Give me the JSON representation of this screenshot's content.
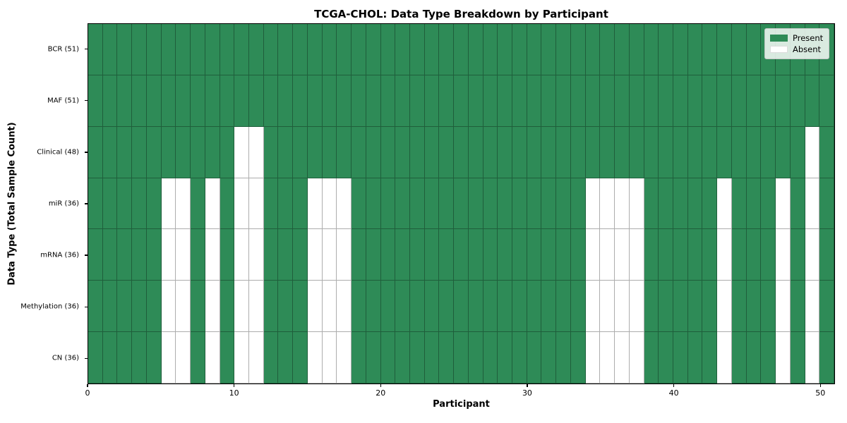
{
  "title": "TCGA-CHOL: Data Type Breakdown by Participant",
  "axes": {
    "xlabel": "Participant",
    "ylabel": "Data Type (Total Sample Count)"
  },
  "legend": {
    "present_label": "Present",
    "absent_label": "Absent"
  },
  "colors": {
    "present": "#2e8b57",
    "absent": "#ffffff",
    "grid_line": "rgba(0,0,0,0.32)",
    "plot_border": "#000000",
    "legend_bg": "rgba(255,255,255,0.82)",
    "legend_border": "#c7c7c7"
  },
  "chart_data": {
    "type": "heatmap",
    "title": "TCGA-CHOL: Data Type Breakdown by Participant",
    "xlabel": "Participant",
    "ylabel": "Data Type (Total Sample Count)",
    "x_range": [
      0,
      51
    ],
    "n_participants": 51,
    "x_ticks": [
      0,
      10,
      20,
      30,
      40,
      50
    ],
    "grid": true,
    "legend_entries": [
      "Present",
      "Absent"
    ],
    "legend_position": "upper right",
    "value_encoding": {
      "present": 1,
      "absent": 0
    },
    "rows": [
      {
        "label": "BCR (51)",
        "total_present": 51,
        "absent_participants": []
      },
      {
        "label": "MAF (51)",
        "total_present": 51,
        "absent_participants": []
      },
      {
        "label": "Clinical (48)",
        "total_present": 48,
        "absent_participants": [
          10,
          11,
          49
        ]
      },
      {
        "label": "miR (36)",
        "total_present": 36,
        "absent_participants": [
          5,
          6,
          8,
          10,
          11,
          15,
          16,
          17,
          34,
          35,
          36,
          37,
          43,
          47,
          49
        ]
      },
      {
        "label": "mRNA (36)",
        "total_present": 36,
        "absent_participants": [
          5,
          6,
          8,
          10,
          11,
          15,
          16,
          17,
          34,
          35,
          36,
          37,
          43,
          47,
          49
        ]
      },
      {
        "label": "Methylation (36)",
        "total_present": 36,
        "absent_participants": [
          5,
          6,
          8,
          10,
          11,
          15,
          16,
          17,
          34,
          35,
          36,
          37,
          43,
          47,
          49
        ]
      },
      {
        "label": "CN (36)",
        "total_present": 36,
        "absent_participants": [
          5,
          6,
          8,
          10,
          11,
          15,
          16,
          17,
          34,
          35,
          36,
          37,
          43,
          47,
          49
        ]
      }
    ]
  }
}
